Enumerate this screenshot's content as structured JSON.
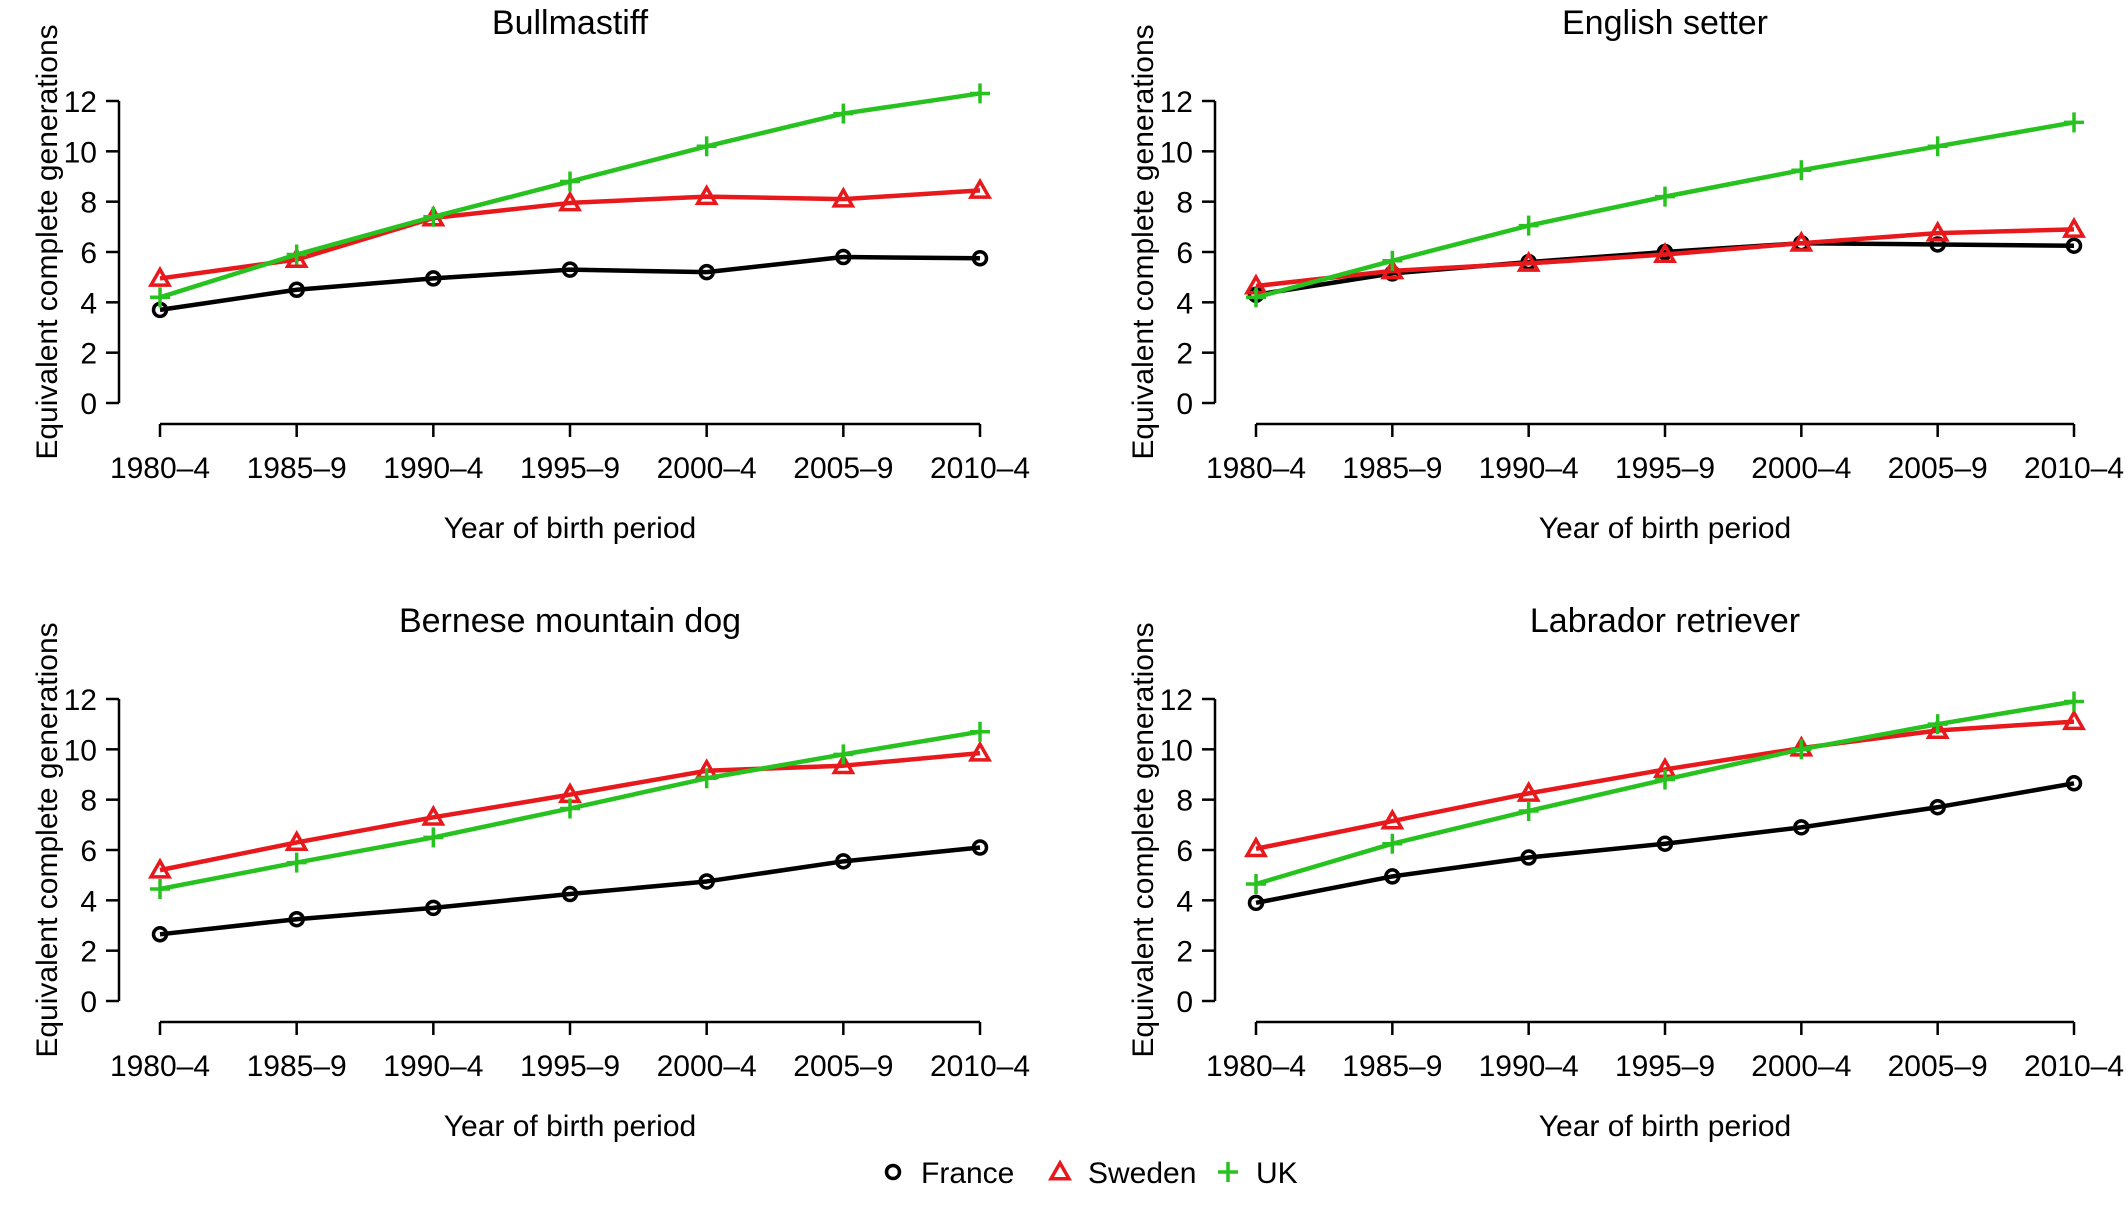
{
  "legend": [
    {
      "name": "France",
      "color": "#000000",
      "marker": "circle"
    },
    {
      "name": "Sweden",
      "color": "#e8191c",
      "marker": "triangle"
    },
    {
      "name": "UK",
      "color": "#27c21f",
      "marker": "plus"
    }
  ],
  "chart_data": [
    {
      "type": "line",
      "title": "Bullmastiff",
      "xlabel": "Year of birth period",
      "ylabel": "Equivalent complete generations",
      "ylim": [
        0,
        12
      ],
      "yticks": [
        0,
        2,
        4,
        6,
        8,
        10,
        12
      ],
      "categories": [
        "1980–4",
        "1985–9",
        "1990–4",
        "1995–9",
        "2000–4",
        "2005–9",
        "2010–4"
      ],
      "series": [
        {
          "name": "France",
          "values": [
            3.7,
            4.5,
            4.95,
            5.3,
            5.2,
            5.8,
            5.75
          ]
        },
        {
          "name": "Sweden",
          "values": [
            4.95,
            5.7,
            7.35,
            7.95,
            8.2,
            8.1,
            8.45
          ]
        },
        {
          "name": "UK",
          "values": [
            4.2,
            5.9,
            7.4,
            8.8,
            10.2,
            11.5,
            12.3
          ]
        }
      ]
    },
    {
      "type": "line",
      "title": "English setter",
      "xlabel": "Year of birth period",
      "ylabel": "Equivalent complete generations",
      "ylim": [
        0,
        12
      ],
      "yticks": [
        0,
        2,
        4,
        6,
        8,
        10,
        12
      ],
      "categories": [
        "1980–4",
        "1985–9",
        "1990–4",
        "1995–9",
        "2000–4",
        "2005–9",
        "2010–4"
      ],
      "series": [
        {
          "name": "France",
          "values": [
            4.3,
            5.15,
            5.6,
            6.0,
            6.35,
            6.3,
            6.25
          ]
        },
        {
          "name": "Sweden",
          "values": [
            4.65,
            5.25,
            5.55,
            5.9,
            6.35,
            6.75,
            6.9
          ]
        },
        {
          "name": "UK",
          "values": [
            4.2,
            5.65,
            7.05,
            8.2,
            9.25,
            10.2,
            11.15
          ]
        }
      ]
    },
    {
      "type": "line",
      "title": "Bernese mountain dog",
      "xlabel": "Year of birth period",
      "ylabel": "Equivalent complete generations",
      "ylim": [
        0,
        12
      ],
      "yticks": [
        0,
        2,
        4,
        6,
        8,
        10,
        12
      ],
      "categories": [
        "1980–4",
        "1985–9",
        "1990–4",
        "1995–9",
        "2000–4",
        "2005–9",
        "2010–4"
      ],
      "series": [
        {
          "name": "France",
          "values": [
            2.65,
            3.25,
            3.7,
            4.25,
            4.75,
            5.55,
            6.1
          ]
        },
        {
          "name": "Sweden",
          "values": [
            5.2,
            6.3,
            7.3,
            8.2,
            9.15,
            9.35,
            9.85
          ]
        },
        {
          "name": "UK",
          "values": [
            4.45,
            5.5,
            6.5,
            7.65,
            8.85,
            9.8,
            10.7
          ]
        }
      ]
    },
    {
      "type": "line",
      "title": "Labrador retriever",
      "xlabel": "Year of birth period",
      "ylabel": "Equivalent complete generations",
      "ylim": [
        0,
        12
      ],
      "yticks": [
        0,
        2,
        4,
        6,
        8,
        10,
        12
      ],
      "categories": [
        "1980–4",
        "1985–9",
        "1990–4",
        "1995–9",
        "2000–4",
        "2005–9",
        "2010–4"
      ],
      "series": [
        {
          "name": "France",
          "values": [
            3.9,
            4.95,
            5.7,
            6.25,
            6.9,
            7.7,
            8.65
          ]
        },
        {
          "name": "Sweden",
          "values": [
            6.05,
            7.15,
            8.25,
            9.2,
            10.05,
            10.75,
            11.1
          ]
        },
        {
          "name": "UK",
          "values": [
            4.65,
            6.25,
            7.55,
            8.8,
            10.0,
            11.0,
            11.9
          ]
        }
      ]
    }
  ]
}
